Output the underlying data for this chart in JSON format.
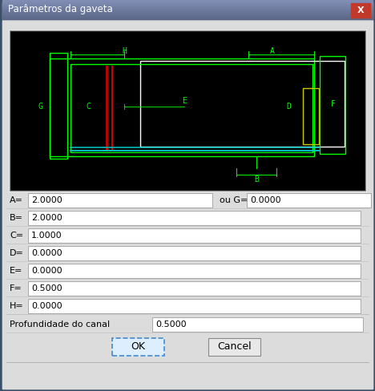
{
  "title": "Parâmetros da gaveta",
  "bg_color": "#c8c8c8",
  "dialog_bg": "#dcdcdc",
  "canvas_bg": "#000000",
  "title_text_color": "#ffffff",
  "fields": [
    {
      "label": "A=",
      "value": "2.0000",
      "extra_label": "ou G=",
      "extra_value": "0.0000"
    },
    {
      "label": "B=",
      "value": "2.0000"
    },
    {
      "label": "C=",
      "value": "1.0000"
    },
    {
      "label": "D=",
      "value": "0.0000"
    },
    {
      "label": "E=",
      "value": "0.0000"
    },
    {
      "label": "F=",
      "value": "0.5000"
    },
    {
      "label": "H=",
      "value": "0.0000"
    }
  ],
  "depth_label": "Profundidade do canal",
  "depth_value": "0.5000",
  "ok_label": "OK",
  "cancel_label": "Cancel",
  "green": "#00ff00",
  "red": "#cc0000",
  "yellow": "#cccc00",
  "cyan": "#00cccc",
  "white": "#ffffff"
}
